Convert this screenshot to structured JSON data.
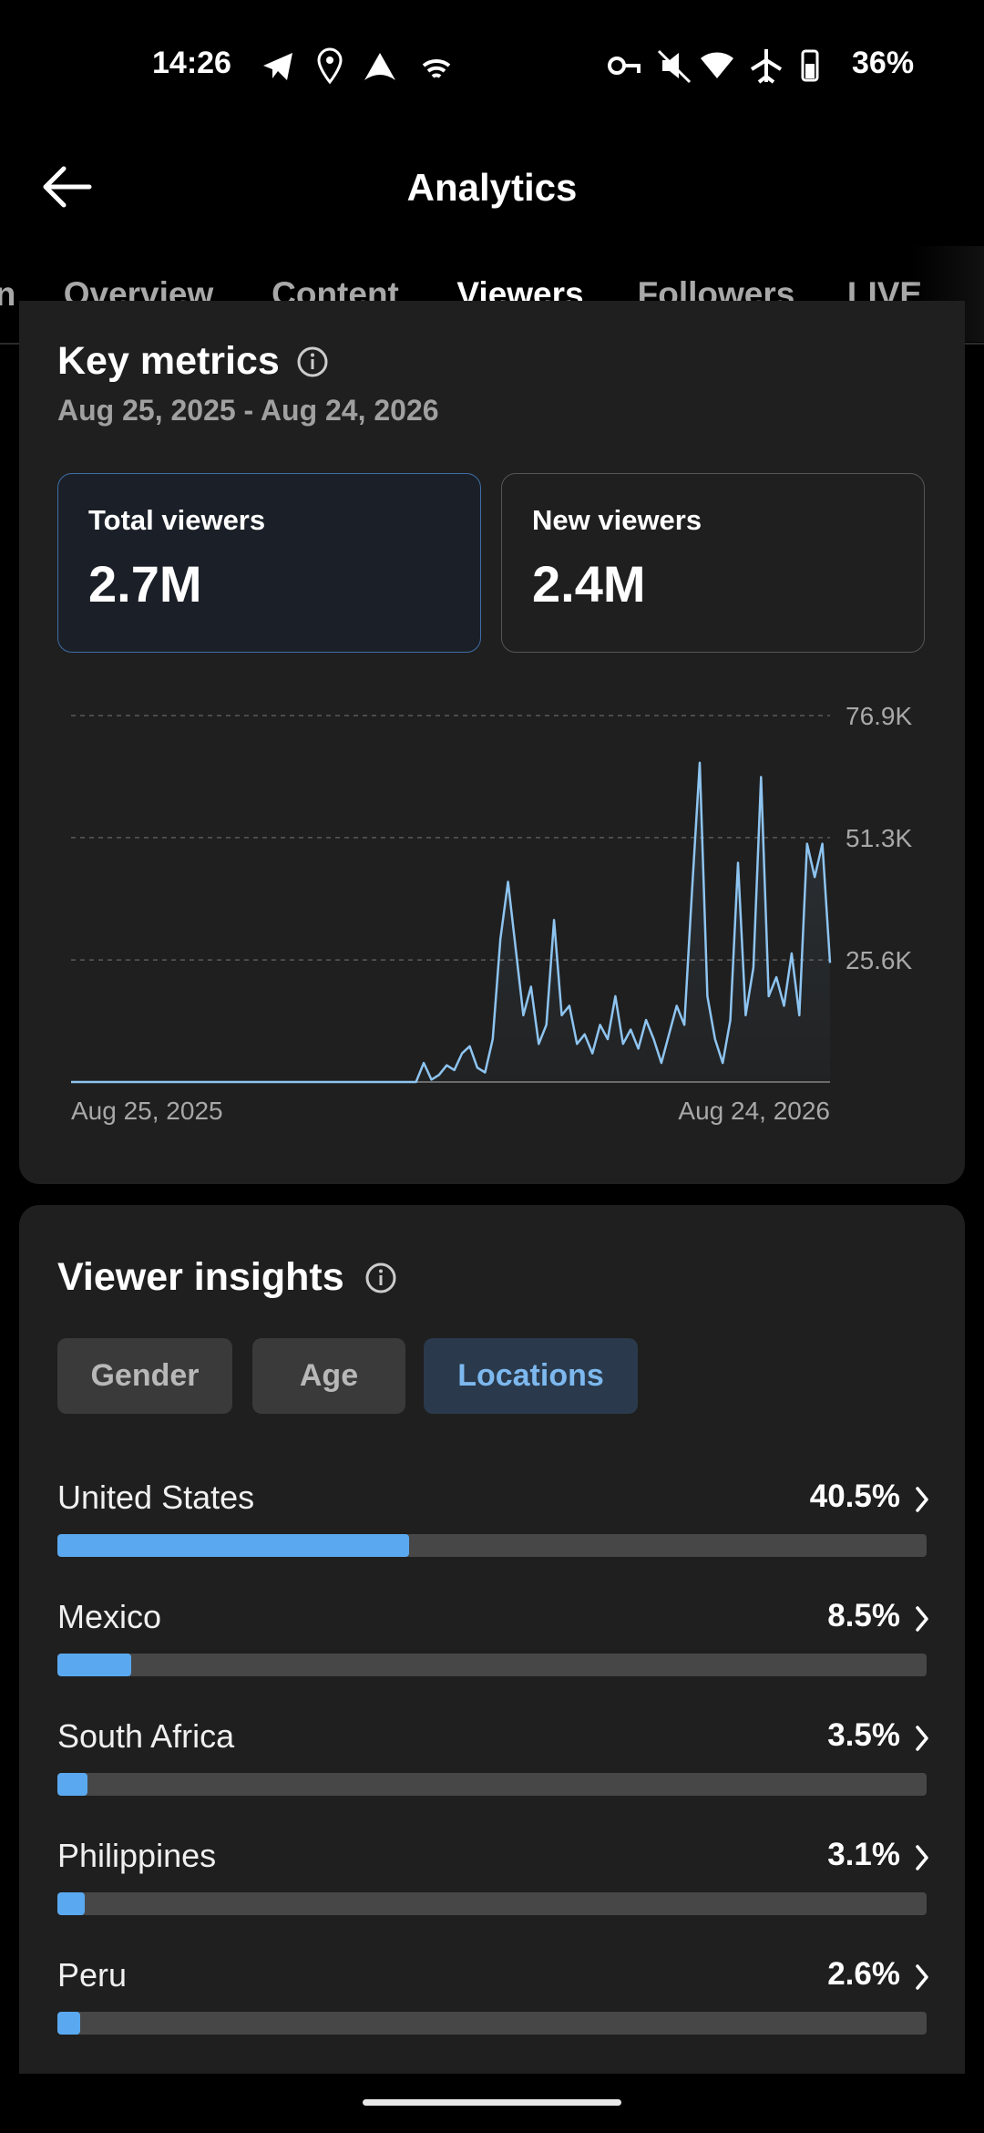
{
  "status_bar": {
    "time": "14:26",
    "battery": "36%"
  },
  "header": {
    "title": "Analytics"
  },
  "tabs": {
    "items": [
      "n",
      "Overview",
      "Content",
      "Viewers",
      "Followers",
      "LIVE"
    ],
    "active": 3
  },
  "key_metrics": {
    "title": "Key metrics",
    "date_range": "Aug 25, 2025 - Aug 24, 2026",
    "cards": [
      {
        "label": "Total viewers",
        "value": "2.7M"
      },
      {
        "label": "New viewers",
        "value": "2.4M"
      }
    ],
    "selected": 0
  },
  "chart_data": {
    "type": "line",
    "color": "#8ec4f0",
    "categories": [
      "Aug 25, 2025",
      null,
      null,
      null,
      null,
      null,
      null,
      null,
      null,
      null,
      null,
      null,
      null,
      null,
      null,
      null,
      null,
      null,
      null,
      null,
      null,
      null,
      null,
      null,
      null,
      null,
      null,
      null,
      null,
      null,
      null,
      null,
      null,
      null,
      null,
      null,
      null,
      null,
      null,
      null,
      null,
      null,
      null,
      null,
      null,
      null,
      null,
      null,
      null,
      null,
      null,
      null,
      null,
      null,
      null,
      null,
      null,
      null,
      null,
      null,
      null,
      null,
      null,
      null,
      null,
      null,
      null,
      null,
      null,
      null,
      null,
      null,
      null,
      null,
      null,
      null,
      null,
      null,
      null,
      null,
      null,
      null,
      null,
      null,
      null,
      null,
      null,
      null,
      null,
      null,
      null,
      null,
      null,
      null,
      null,
      null,
      null,
      null,
      null,
      "Aug 24, 2026"
    ],
    "values": [
      0,
      0,
      0,
      0,
      0,
      0,
      0,
      0,
      0,
      0,
      0,
      0,
      0,
      0,
      0,
      0,
      0,
      0,
      0,
      0,
      0,
      0,
      0,
      0,
      0,
      0,
      0,
      0,
      0,
      0,
      0,
      0,
      0,
      0,
      0,
      0,
      0,
      0,
      0,
      0,
      0,
      0,
      0,
      0,
      0,
      0,
      4000,
      500,
      1500,
      3500,
      2500,
      6000,
      7500,
      3000,
      2000,
      9000,
      30000,
      42000,
      28000,
      14000,
      20000,
      8000,
      12000,
      34000,
      14000,
      16000,
      8000,
      10000,
      6000,
      12000,
      9000,
      18000,
      8000,
      11000,
      7000,
      13000,
      9000,
      4000,
      10000,
      16000,
      12000,
      40000,
      67000,
      18000,
      9000,
      4000,
      13000,
      46000,
      14000,
      24000,
      64000,
      18000,
      22000,
      16000,
      27000,
      14000,
      50000,
      43000,
      50000,
      25000
    ],
    "ylim": [
      0,
      76900
    ],
    "yticks": [
      {
        "value": 25600,
        "label": "25.6K"
      },
      {
        "value": 51300,
        "label": "51.3K"
      },
      {
        "value": 76900,
        "label": "76.9K"
      }
    ],
    "grid": true
  },
  "viewer_insights": {
    "title": "Viewer insights",
    "filters": [
      "Gender",
      "Age",
      "Locations"
    ],
    "active_filter": 2,
    "locations": [
      {
        "name": "United States",
        "value": 40.5,
        "value_label": "40.5%"
      },
      {
        "name": "Mexico",
        "value": 8.5,
        "value_label": "8.5%"
      },
      {
        "name": "South Africa",
        "value": 3.5,
        "value_label": "3.5%"
      },
      {
        "name": "Philippines",
        "value": 3.1,
        "value_label": "3.1%"
      },
      {
        "name": "Peru",
        "value": 2.6,
        "value_label": "2.6%"
      }
    ]
  }
}
